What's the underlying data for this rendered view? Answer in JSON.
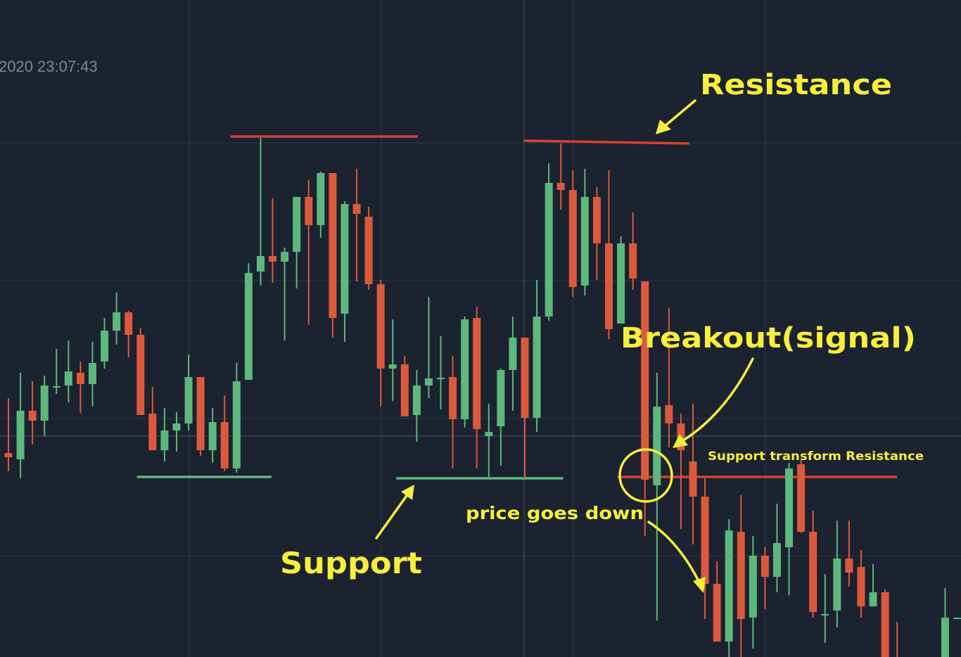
{
  "header": {
    "timestamp": "2020 23:07:43"
  },
  "colors": {
    "background": "#1b2230",
    "grid": "#283142",
    "crosshair": "#3a4354",
    "up": "#5cb87c",
    "down": "#dc5a3b",
    "annotation_line_red": "#d4432c",
    "annotation_line_green": "#5cb87c",
    "annotation_yellow": "#f7ef3b",
    "timestamp_text": "#7c88a0"
  },
  "chart_data": {
    "type": "candlestick",
    "title": "",
    "xlabel": "",
    "ylabel": "",
    "axes_visible": false,
    "grid": true,
    "note_units": "relative price, no axis printed",
    "candles": [
      [
        35.6,
        35.0,
        43.4,
        33.0
      ],
      [
        34.7,
        41.6,
        47.0,
        32.0
      ],
      [
        41.6,
        40.2,
        45.8,
        36.8
      ],
      [
        40.2,
        45.2,
        46.6,
        38.0
      ],
      [
        45.1,
        45.1,
        50.4,
        44.0
      ],
      [
        45.2,
        47.2,
        51.6,
        42.8
      ],
      [
        47.0,
        45.4,
        48.6,
        41.2
      ],
      [
        45.4,
        48.4,
        51.4,
        42.2
      ],
      [
        48.6,
        53.0,
        54.8,
        47.6
      ],
      [
        53.0,
        55.6,
        58.4,
        51.0
      ],
      [
        55.6,
        52.4,
        55.8,
        49.2
      ],
      [
        52.4,
        41.0,
        53.4,
        41.0
      ],
      [
        41.2,
        36.0,
        45.0,
        36.0
      ],
      [
        36.0,
        38.8,
        42.0,
        34.4
      ],
      [
        38.8,
        39.8,
        41.4,
        35.8
      ],
      [
        39.8,
        46.4,
        49.6,
        38.8
      ],
      [
        46.4,
        36.0,
        46.4,
        35.2
      ],
      [
        36.0,
        40.0,
        42.0,
        34.2
      ],
      [
        40.0,
        33.4,
        43.8,
        33.0
      ],
      [
        33.4,
        45.8,
        48.4,
        32.8
      ],
      [
        46.0,
        61.2,
        62.6,
        46.0
      ],
      [
        61.4,
        63.6,
        80.4,
        59.4
      ],
      [
        63.6,
        62.8,
        71.8,
        59.8
      ],
      [
        62.8,
        64.2,
        64.8,
        51.6
      ],
      [
        64.2,
        72.0,
        72.0,
        59.0
      ],
      [
        72.0,
        68.0,
        74.4,
        53.8
      ],
      [
        68.0,
        75.4,
        75.6,
        66.2
      ],
      [
        75.4,
        54.8,
        75.4,
        52.0
      ],
      [
        55.4,
        71.0,
        71.4,
        51.4
      ],
      [
        71.0,
        69.6,
        76.0,
        60.0
      ],
      [
        69.2,
        59.6,
        70.6,
        58.8
      ],
      [
        59.6,
        47.6,
        60.2,
        42.2
      ],
      [
        47.6,
        48.2,
        54.6,
        43.0
      ],
      [
        48.2,
        40.8,
        49.4,
        40.8
      ],
      [
        41.0,
        45.2,
        47.4,
        37.2
      ],
      [
        45.2,
        46.2,
        57.8,
        43.4
      ],
      [
        46.3,
        46.3,
        52.2,
        41.8
      ],
      [
        46.4,
        40.4,
        49.4,
        33.4
      ],
      [
        40.4,
        54.6,
        55.0,
        39.2
      ],
      [
        54.8,
        39.0,
        56.4,
        33.4
      ],
      [
        38.0,
        38.6,
        42.6,
        32.2
      ],
      [
        39.4,
        47.4,
        47.6,
        33.8
      ],
      [
        47.4,
        52.0,
        55.0,
        41.6
      ],
      [
        52.0,
        40.6,
        52.0,
        32.0
      ],
      [
        40.6,
        55.0,
        60.2,
        38.6
      ],
      [
        55.0,
        74.0,
        76.8,
        54.4
      ],
      [
        74.0,
        73.0,
        79.6,
        70.2
      ],
      [
        73.0,
        59.2,
        75.8,
        57.8
      ],
      [
        59.4,
        72.0,
        76.0,
        58.0
      ],
      [
        72.0,
        65.4,
        73.4,
        60.2
      ],
      [
        65.4,
        53.2,
        75.8,
        51.8
      ],
      [
        54.0,
        65.4,
        66.4,
        54.0
      ],
      [
        65.4,
        60.4,
        69.8,
        58.8
      ],
      [
        60.0,
        31.8,
        60.0,
        23.8
      ],
      [
        31.0,
        42.2,
        47.0,
        11.8
      ],
      [
        42.4,
        39.8,
        56.2,
        36.4
      ],
      [
        39.8,
        36.0,
        41.2,
        24.8
      ],
      [
        34.4,
        29.4,
        42.6,
        22.6
      ],
      [
        29.4,
        17.0,
        32.0,
        12.0
      ],
      [
        17.0,
        8.8,
        20.2,
        8.8
      ],
      [
        8.8,
        24.6,
        26.2,
        6.6
      ],
      [
        24.4,
        12.0,
        29.6,
        6.6
      ],
      [
        12.2,
        21.0,
        23.8,
        7.8
      ],
      [
        21.0,
        18.0,
        22.2,
        13.4
      ],
      [
        18.0,
        22.8,
        28.4,
        15.8
      ],
      [
        22.2,
        33.4,
        34.2,
        15.4
      ],
      [
        34.0,
        24.4,
        34.6,
        24.2
      ],
      [
        24.4,
        13.0,
        27.4,
        12.2
      ],
      [
        12.7,
        12.7,
        18.4,
        8.6
      ],
      [
        13.2,
        20.6,
        26.0,
        10.8
      ],
      [
        20.6,
        18.6,
        26.0,
        16.6
      ],
      [
        19.4,
        13.8,
        21.8,
        12.2
      ],
      [
        13.8,
        15.8,
        19.8,
        13.8
      ],
      [
        15.8,
        4.0,
        16.2,
        4.0
      ],
      [
        5.0,
        3.0,
        11.6,
        3.0
      ],
      null,
      null,
      null,
      [
        4.0,
        12.2,
        16.4,
        3.0
      ],
      [
        12.2,
        12.2,
        12.2,
        12.2
      ]
    ],
    "candle_fields": [
      "open",
      "close",
      "high",
      "low"
    ],
    "levels": [
      {
        "kind": "resistance",
        "price_start": 80.6,
        "price_end": 80.6,
        "from_bar": 18.5,
        "to_bar": 34.1,
        "color": "#d4432c"
      },
      {
        "kind": "resistance",
        "price_start": 80.0,
        "price_end": 79.6,
        "from_bar": 42.9,
        "to_bar": 56.7,
        "color": "#d4432c"
      },
      {
        "kind": "support",
        "price_start": 32.2,
        "price_end": 32.2,
        "from_bar": 10.7,
        "to_bar": 21.9,
        "color": "#5cb87c"
      },
      {
        "kind": "support",
        "price_start": 32.0,
        "price_end": 32.0,
        "from_bar": 32.3,
        "to_bar": 46.2,
        "color": "#5cb87c"
      },
      {
        "kind": "support-turned-resistance",
        "price_start": 32.2,
        "price_end": 32.2,
        "from_bar": 50.7,
        "to_bar": 74.0,
        "color": "#d4432c"
      }
    ],
    "annotations": {
      "resistance": "Resistance",
      "breakout": "Breakout(signal)",
      "support": "Support",
      "price_down": "price goes down",
      "flip": "Support transform Resistance"
    }
  }
}
